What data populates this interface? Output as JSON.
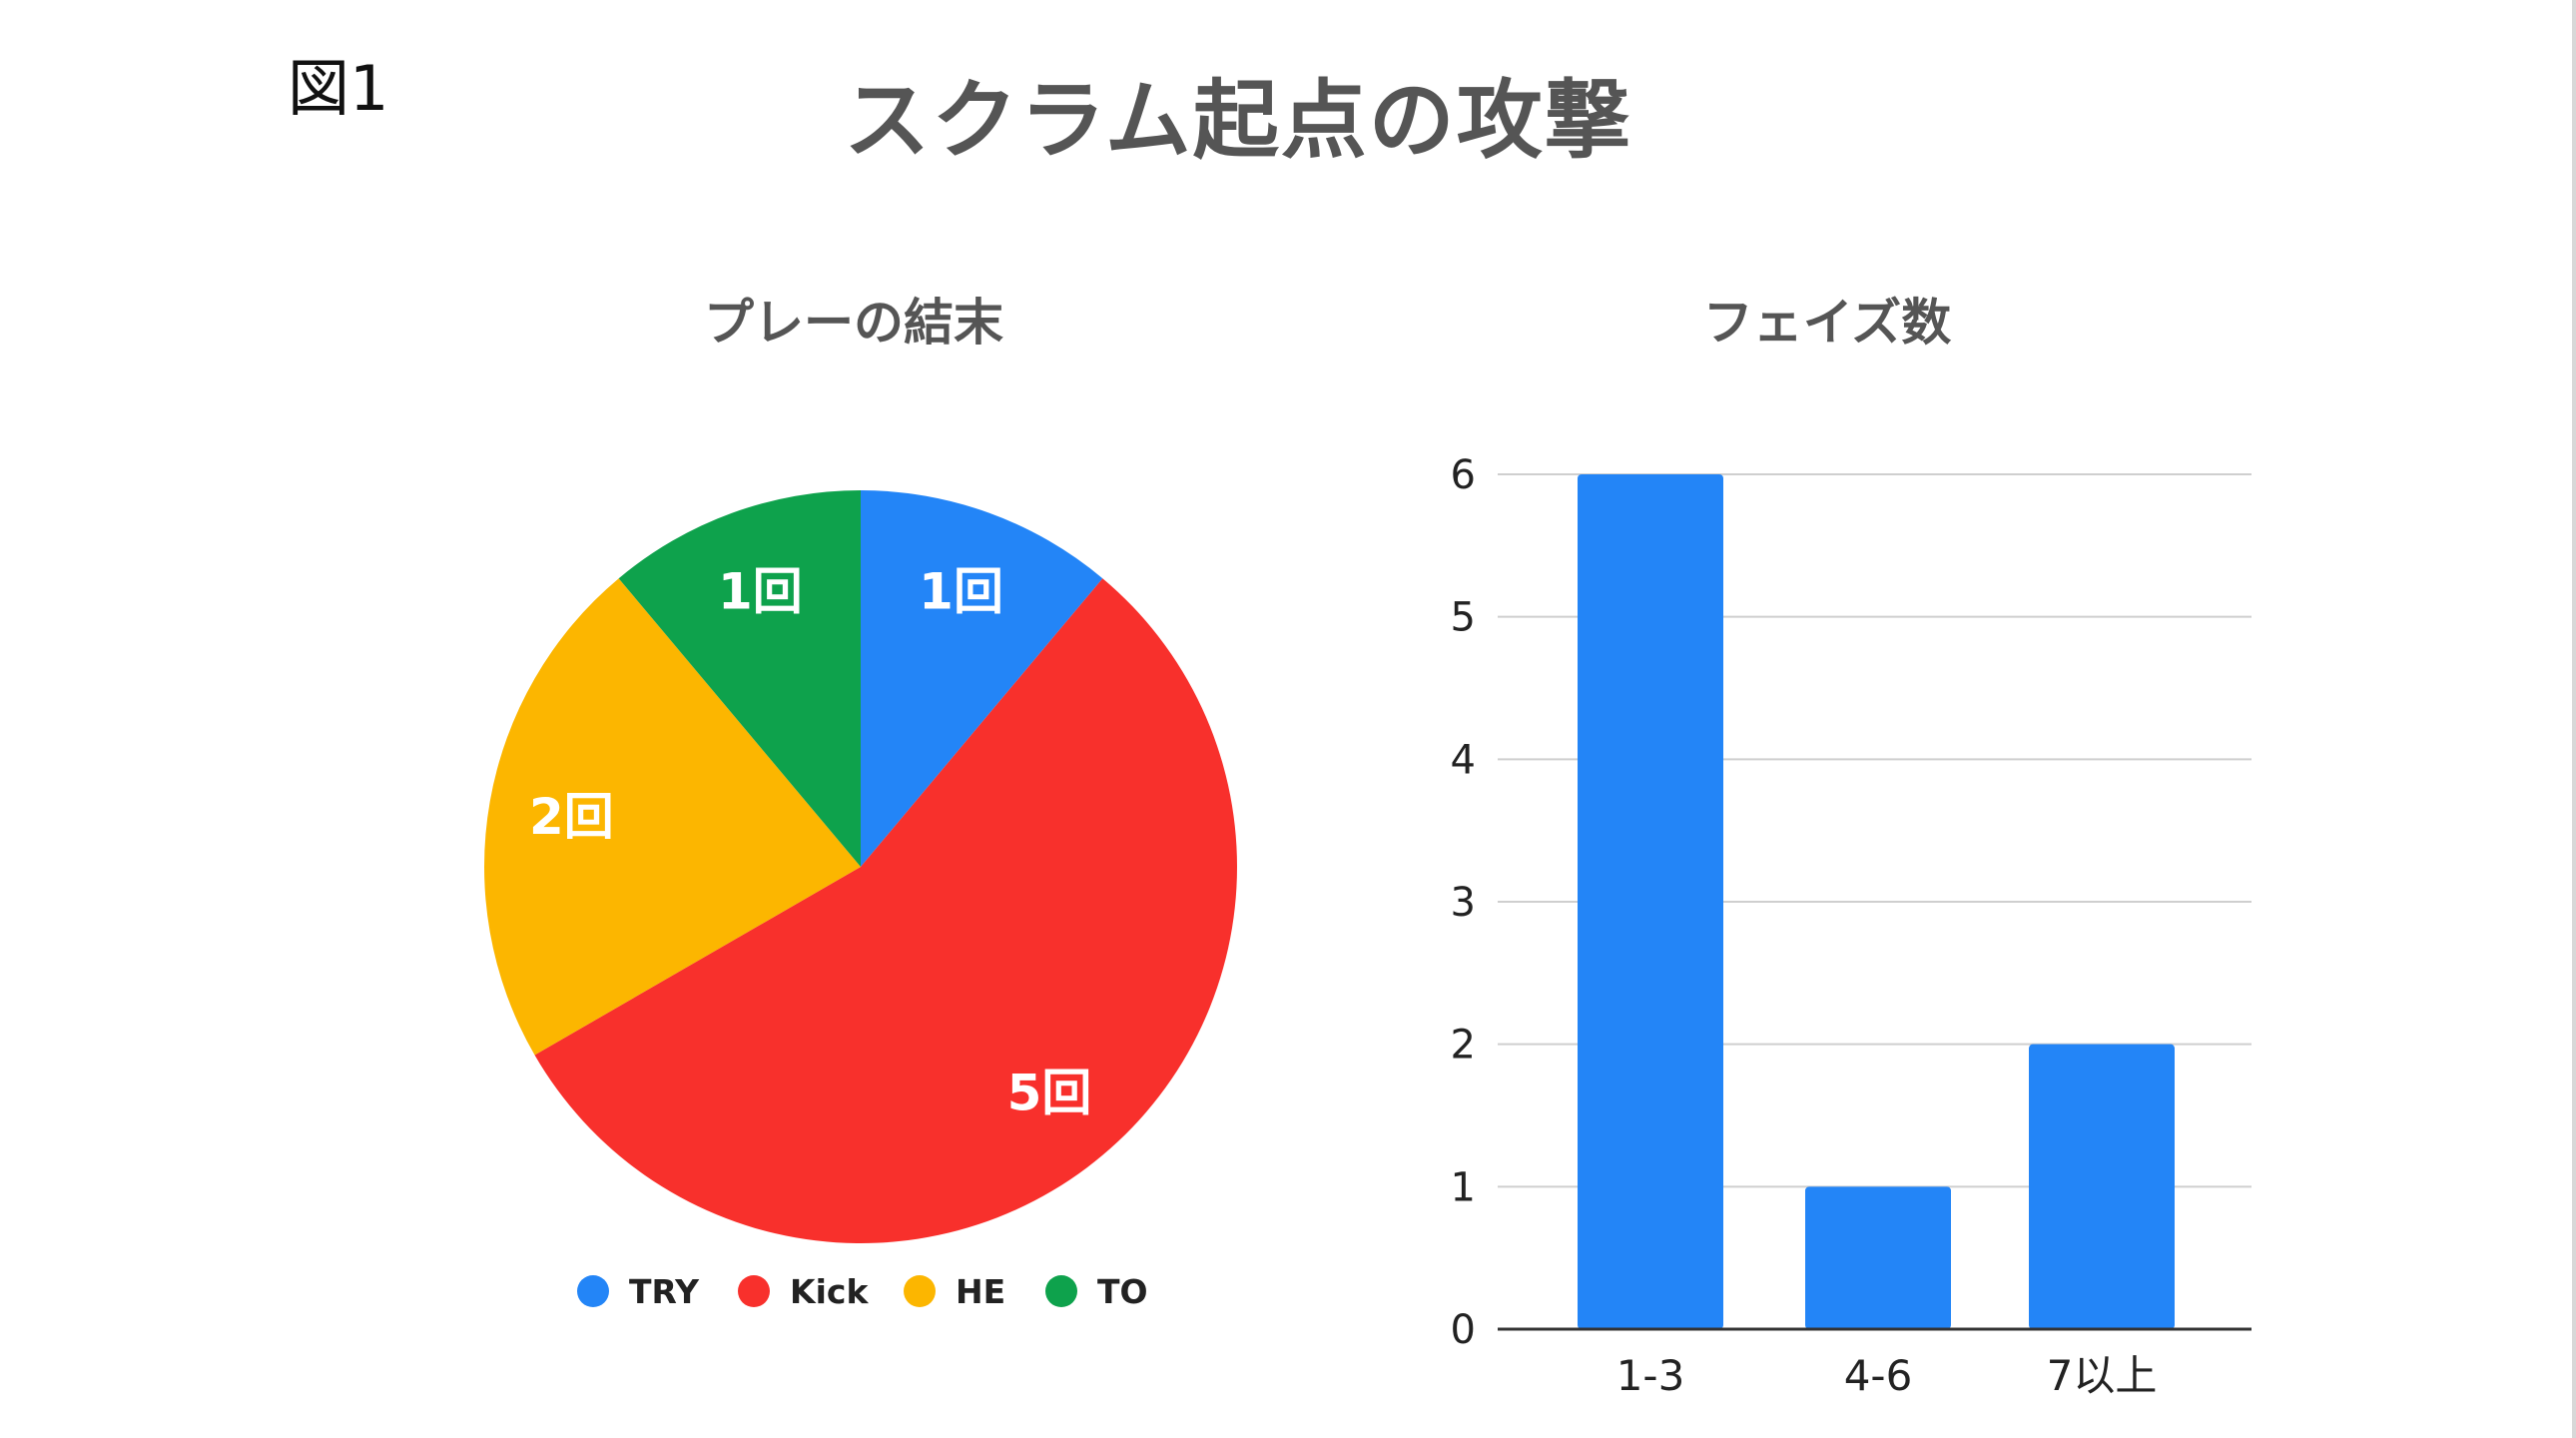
{
  "figure_label": "図1",
  "title": "スクラム起点の攻撃",
  "colors": {
    "blue": "#2385f7",
    "red": "#f8302c",
    "yellow": "#fcb600",
    "green": "#0ea24c",
    "grid": "#cfcfcf",
    "axis": "#333333"
  },
  "chart_data": [
    {
      "type": "pie",
      "title": "プレーの結末",
      "legend_position": "bottom",
      "slices": [
        {
          "name": "TRY",
          "value": 1,
          "label": "1回",
          "color": "#2385f7"
        },
        {
          "name": "Kick",
          "value": 5,
          "label": "5回",
          "color": "#f8302c"
        },
        {
          "name": "HE",
          "value": 2,
          "label": "2回",
          "color": "#fcb600"
        },
        {
          "name": "TO",
          "value": 1,
          "label": "1回",
          "color": "#0ea24c"
        }
      ]
    },
    {
      "type": "bar",
      "title": "フェイズ数",
      "categories": [
        "1-3",
        "4-6",
        "7以上"
      ],
      "values": [
        6,
        1,
        2
      ],
      "ylim": [
        0,
        6
      ],
      "yticks": [
        "0",
        "1",
        "2",
        "3",
        "4",
        "5",
        "6"
      ],
      "grid": true,
      "color": "#2385f7",
      "xlabel": "",
      "ylabel": ""
    }
  ]
}
